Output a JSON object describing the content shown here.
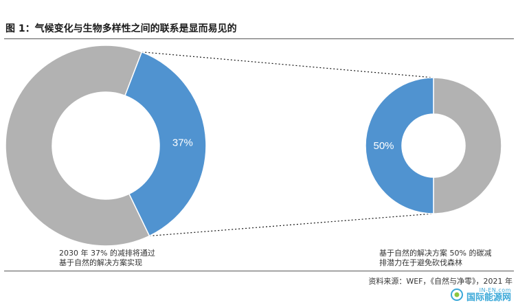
{
  "title": "图 1：气候变化与生物多样性之间的联系是显而易见的",
  "source": "资料来源：WEF，《自然与净零》，2021 年",
  "watermark": {
    "en": "IN-EN.com",
    "cn": "国际能源网"
  },
  "colors": {
    "highlight": "#5093d0",
    "rest": "#b2b2b2",
    "label": "#ffffff",
    "connector": "#111111"
  },
  "chart_data": [
    {
      "type": "pie",
      "variant": "donut",
      "slices": [
        {
          "label": "37%",
          "value": 37,
          "color": "#5093d0"
        },
        {
          "label": "",
          "value": 63,
          "color": "#b2b2b2"
        }
      ],
      "caption": [
        "2030 年 37% 的减排将通过",
        "基于自然的解决方案实现"
      ]
    },
    {
      "type": "pie",
      "variant": "donut",
      "slices": [
        {
          "label": "50%",
          "value": 50,
          "color": "#5093d0"
        },
        {
          "label": "",
          "value": 50,
          "color": "#b2b2b2"
        }
      ],
      "caption": [
        "基于自然的解决方案 50% 的碳减",
        "排潜力在于避免砍伐森林"
      ]
    }
  ]
}
